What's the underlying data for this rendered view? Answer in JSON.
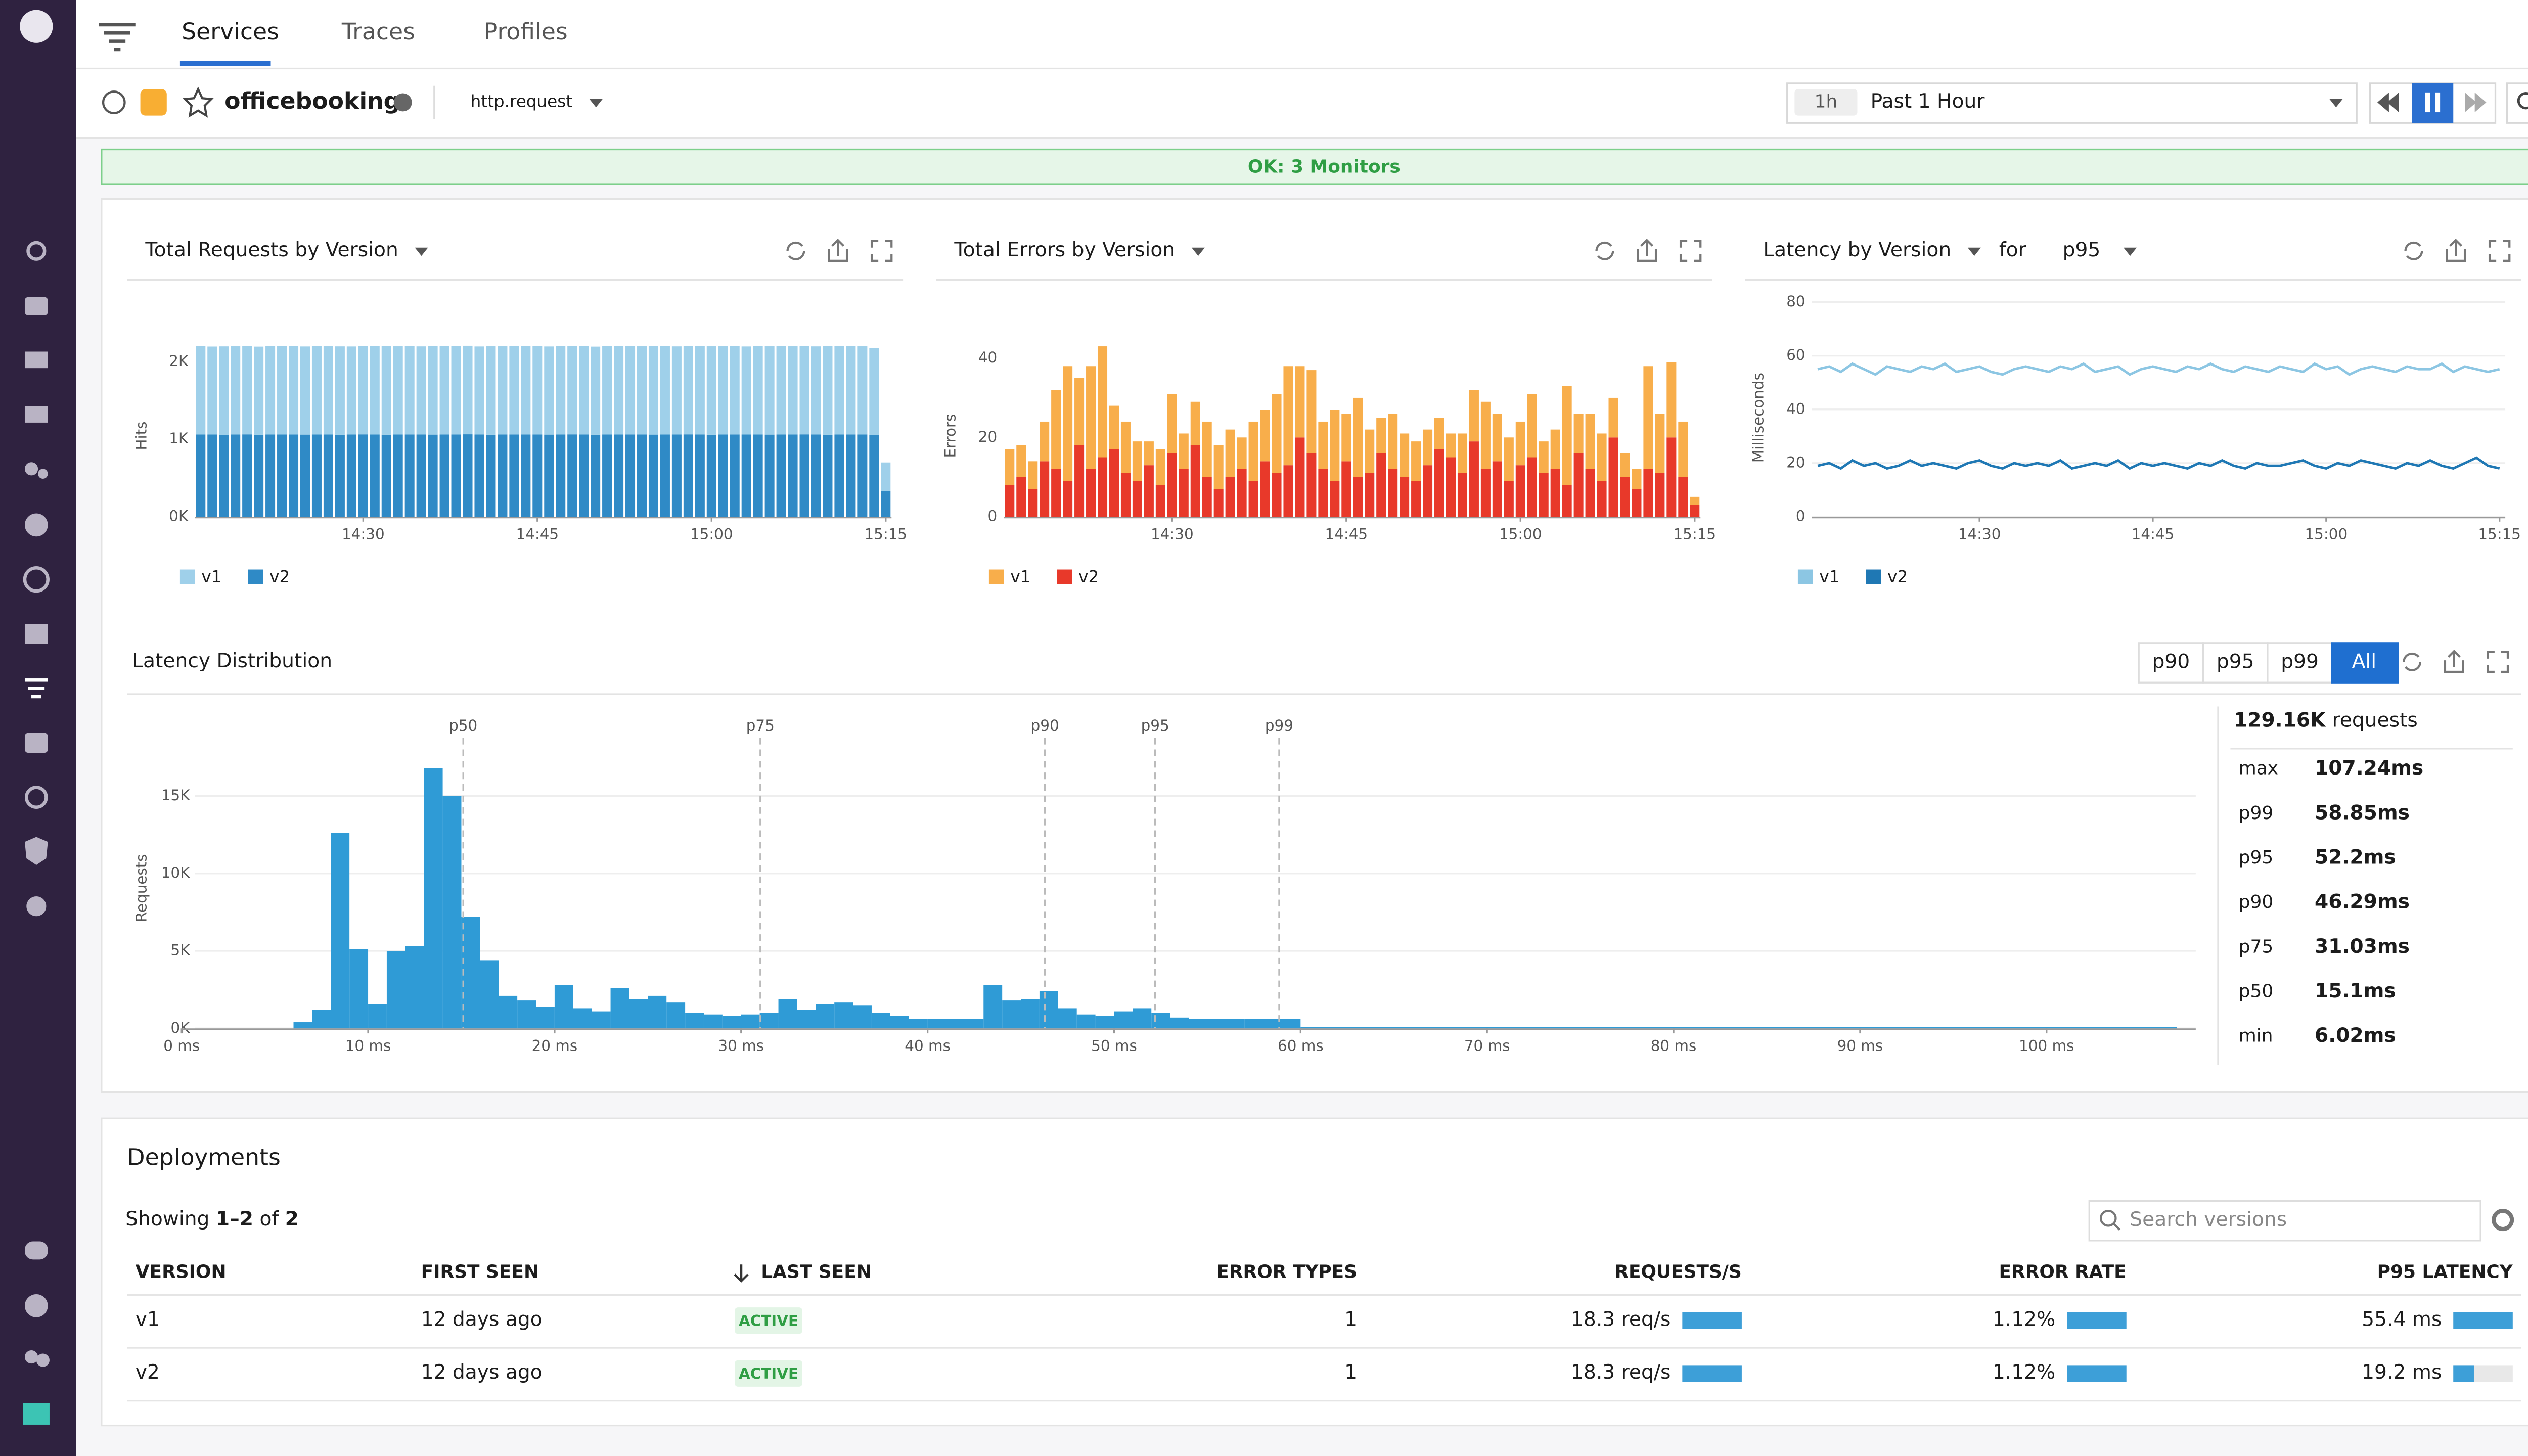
{
  "nav": {
    "tabs": [
      "Services",
      "Traces",
      "Profiles"
    ]
  },
  "header": {
    "service": "officebooking",
    "operation": "http.request",
    "time_chip": "1h",
    "time_range": "Past 1 Hour",
    "monitors": "OK: 3 Monitors"
  },
  "chart_data": [
    {
      "type": "bar",
      "stacked": true,
      "title": "Total Requests by Version",
      "y_label": "Hits",
      "categories": [
        null,
        null,
        null,
        null,
        null,
        null,
        null,
        null,
        null,
        null,
        null,
        null,
        null,
        null,
        "14:30",
        null,
        null,
        null,
        null,
        null,
        null,
        null,
        null,
        null,
        null,
        null,
        null,
        null,
        null,
        "14:45",
        null,
        null,
        null,
        null,
        null,
        null,
        null,
        null,
        null,
        null,
        null,
        null,
        null,
        null,
        "15:00",
        null,
        null,
        null,
        null,
        null,
        null,
        null,
        null,
        null,
        null,
        null,
        null,
        null,
        null,
        "15:15"
      ],
      "series": [
        {
          "name": "v1",
          "color": "#9fd0ea",
          "values": [
            1140,
            1135,
            1142,
            1138,
            1140,
            1136,
            1141,
            1139,
            1140,
            1137,
            1142,
            1138,
            1140,
            1136,
            1141,
            1139,
            1143,
            1138,
            1140,
            1137,
            1141,
            1139,
            1140,
            1142,
            1136,
            1140,
            1138,
            1141,
            1139,
            1140,
            1137,
            1142,
            1138,
            1140,
            1136,
            1141,
            1139,
            1140,
            1138,
            1142,
            1140,
            1137,
            1141,
            1139,
            1140,
            1138,
            1142,
            1136,
            1140,
            1139,
            1141,
            1138,
            1140,
            1137,
            1142,
            1139,
            1140,
            1138,
            1120,
            370
          ]
        },
        {
          "name": "v2",
          "color": "#2f8ac6",
          "values": [
            1060,
            1060,
            1055,
            1060,
            1062,
            1058,
            1060,
            1060,
            1061,
            1059,
            1060,
            1060,
            1057,
            1060,
            1062,
            1060,
            1058,
            1060,
            1061,
            1060,
            1059,
            1060,
            1060,
            1063,
            1060,
            1058,
            1060,
            1061,
            1060,
            1060,
            1059,
            1060,
            1062,
            1060,
            1058,
            1060,
            1060,
            1061,
            1060,
            1059,
            1060,
            1060,
            1062,
            1060,
            1058,
            1060,
            1061,
            1060,
            1060,
            1059,
            1060,
            1060,
            1062,
            1060,
            1058,
            1060,
            1061,
            1060,
            1055,
            330
          ]
        }
      ],
      "ylim": [
        0,
        2300
      ],
      "yticks": [
        {
          "value": 0,
          "label": "0K"
        },
        {
          "value": 1000,
          "label": "1K"
        },
        {
          "value": 2000,
          "label": "2K"
        }
      ]
    },
    {
      "type": "bar",
      "stacked": true,
      "title": "Total Errors by Version",
      "y_label": "Errors",
      "categories": [
        null,
        null,
        null,
        null,
        null,
        null,
        null,
        null,
        null,
        null,
        null,
        null,
        null,
        null,
        "14:30",
        null,
        null,
        null,
        null,
        null,
        null,
        null,
        null,
        null,
        null,
        null,
        null,
        null,
        null,
        "14:45",
        null,
        null,
        null,
        null,
        null,
        null,
        null,
        null,
        null,
        null,
        null,
        null,
        null,
        null,
        "15:00",
        null,
        null,
        null,
        null,
        null,
        null,
        null,
        null,
        null,
        null,
        null,
        null,
        null,
        null,
        "15:15"
      ],
      "series": [
        {
          "name": "v1",
          "color": "#f8ae4b",
          "values": [
            9,
            8,
            7,
            10,
            20,
            29,
            17,
            26,
            28,
            11,
            13,
            10,
            6,
            9,
            15,
            9,
            11,
            14,
            11,
            12,
            8,
            15,
            13,
            20,
            25,
            18,
            21,
            12,
            18,
            12,
            20,
            11,
            9,
            14,
            11,
            10,
            9,
            8,
            6,
            10,
            13,
            17,
            12,
            11,
            11,
            16,
            8,
            10,
            25,
            10,
            14,
            12,
            10,
            6,
            5,
            26,
            15,
            19,
            14,
            2
          ]
        },
        {
          "name": "v2",
          "color": "#e8392a",
          "values": [
            8,
            10,
            7,
            14,
            12,
            9,
            18,
            12,
            15,
            17,
            11,
            9,
            13,
            8,
            16,
            12,
            18,
            10,
            7,
            10,
            12,
            9,
            14,
            11,
            13,
            20,
            16,
            12,
            9,
            14,
            10,
            11,
            16,
            12,
            10,
            9,
            13,
            17,
            15,
            11,
            19,
            12,
            14,
            9,
            13,
            15,
            11,
            12,
            8,
            16,
            12,
            9,
            20,
            10,
            7,
            12,
            11,
            20,
            10,
            3
          ]
        }
      ],
      "ylim": [
        0,
        45
      ],
      "yticks": [
        0,
        20,
        40
      ]
    },
    {
      "type": "line",
      "title": "Latency by Version",
      "filter_label": "for",
      "percentile": "p95",
      "y_label": "Milliseconds",
      "categories": [
        null,
        null,
        null,
        null,
        null,
        null,
        null,
        null,
        null,
        null,
        null,
        null,
        null,
        null,
        "14:30",
        null,
        null,
        null,
        null,
        null,
        null,
        null,
        null,
        null,
        null,
        null,
        null,
        null,
        null,
        "14:45",
        null,
        null,
        null,
        null,
        null,
        null,
        null,
        null,
        null,
        null,
        null,
        null,
        null,
        null,
        "15:00",
        null,
        null,
        null,
        null,
        null,
        null,
        null,
        null,
        null,
        null,
        null,
        null,
        null,
        null,
        "15:15"
      ],
      "series": [
        {
          "name": "v1",
          "color": "#8cc6e3",
          "values": [
            55,
            56,
            54,
            57,
            55,
            53,
            56,
            55,
            54,
            56,
            55,
            57,
            54,
            55,
            56,
            54,
            53,
            55,
            56,
            55,
            54,
            56,
            55,
            57,
            54,
            55,
            56,
            53,
            55,
            56,
            55,
            54,
            56,
            55,
            57,
            55,
            54,
            56,
            55,
            54,
            56,
            55,
            54,
            57,
            55,
            56,
            53,
            55,
            56,
            55,
            54,
            56,
            55,
            55,
            57,
            54,
            56,
            55,
            54,
            55
          ]
        },
        {
          "name": "v2",
          "color": "#1f78b4",
          "values": [
            19,
            20,
            18,
            21,
            19,
            20,
            18,
            19,
            21,
            19,
            20,
            19,
            18,
            20,
            21,
            19,
            18,
            20,
            19,
            20,
            19,
            21,
            18,
            19,
            20,
            19,
            21,
            18,
            20,
            19,
            20,
            19,
            18,
            20,
            19,
            21,
            19,
            18,
            20,
            19,
            19,
            20,
            21,
            19,
            18,
            20,
            19,
            21,
            20,
            19,
            18,
            20,
            19,
            21,
            19,
            18,
            20,
            22,
            19,
            18
          ]
        }
      ],
      "ylim": [
        0,
        80
      ],
      "yticks": [
        0,
        20,
        40,
        60,
        80
      ]
    },
    {
      "type": "histogram",
      "title": "Latency Distribution",
      "y_label": "Requests",
      "color": "#2f9bd6",
      "bins": [
        6,
        7,
        8,
        9,
        10,
        11,
        12,
        13,
        14,
        15,
        16,
        17,
        18,
        19,
        20,
        21,
        22,
        23,
        24,
        25,
        26,
        27,
        28,
        29,
        30,
        31,
        32,
        33,
        34,
        35,
        36,
        37,
        38,
        39,
        40,
        41,
        42,
        43,
        44,
        45,
        46,
        47,
        48,
        49,
        50,
        51,
        52,
        53,
        54,
        55,
        56,
        57,
        58,
        59,
        60,
        107
      ],
      "counts": [
        400,
        1200,
        12600,
        5100,
        1600,
        5000,
        5300,
        16800,
        15000,
        7200,
        4400,
        2100,
        1800,
        1400,
        2800,
        1300,
        1100,
        2600,
        1900,
        2100,
        1700,
        1000,
        900,
        800,
        900,
        1000,
        1900,
        1200,
        1600,
        1700,
        1500,
        1000,
        800,
        600,
        600,
        600,
        600,
        2800,
        1800,
        1900,
        2400,
        1300,
        900,
        800,
        1100,
        1300,
        1000,
        700,
        600,
        600,
        600,
        600,
        600,
        600,
        100
      ],
      "xlim": [
        0,
        108
      ],
      "xticks": [
        {
          "value": 0,
          "label": "0 ms"
        },
        {
          "value": 10,
          "label": "10 ms"
        },
        {
          "value": 20,
          "label": "20 ms"
        },
        {
          "value": 30,
          "label": "30 ms"
        },
        {
          "value": 40,
          "label": "40 ms"
        },
        {
          "value": 50,
          "label": "50 ms"
        },
        {
          "value": 60,
          "label": "60 ms"
        },
        {
          "value": 70,
          "label": "70 ms"
        },
        {
          "value": 80,
          "label": "80 ms"
        },
        {
          "value": 90,
          "label": "90 ms"
        },
        {
          "value": 100,
          "label": "100 ms"
        }
      ],
      "ylim": [
        0,
        18000
      ],
      "yticks": [
        {
          "value": 0,
          "label": "0K"
        },
        {
          "value": 5000,
          "label": "5K"
        },
        {
          "value": 10000,
          "label": "10K"
        },
        {
          "value": 15000,
          "label": "15K"
        }
      ],
      "markers": [
        {
          "label": "p50",
          "value": 15.1
        },
        {
          "label": "p75",
          "value": 31.03
        },
        {
          "label": "p90",
          "value": 46.29
        },
        {
          "label": "p95",
          "value": 52.2
        },
        {
          "label": "p99",
          "value": 58.85
        }
      ],
      "buttons": [
        "p90",
        "p95",
        "p99",
        "All"
      ],
      "total": "129.16K",
      "total_unit": "requests",
      "stats": [
        {
          "name": "max",
          "label": "107.24ms"
        },
        {
          "name": "p99",
          "label": "58.85ms"
        },
        {
          "name": "p95",
          "label": "52.2ms"
        },
        {
          "name": "p90",
          "label": "46.29ms"
        },
        {
          "name": "p75",
          "label": "31.03ms"
        },
        {
          "name": "p50",
          "label": "15.1ms"
        },
        {
          "name": "min",
          "label": "6.02ms"
        }
      ]
    }
  ],
  "deployments": {
    "title": "Deployments",
    "showing_prefix": "Showing",
    "showing_range": "1–2",
    "showing_of": "of",
    "showing_total": "2",
    "search": "Search versions",
    "columns": [
      "VERSION",
      "FIRST SEEN",
      "LAST SEEN",
      "ERROR TYPES",
      "REQUESTS/S",
      "ERROR RATE",
      "P95 LATENCY"
    ],
    "rows": [
      [
        "v1",
        "12 days ago",
        "ACTIVE",
        1,
        {
          "value": 18.3,
          "label": "18.3 req/s"
        },
        {
          "value": 1.12,
          "label": "1.12%"
        },
        {
          "value": 55.4,
          "label": "55.4 ms"
        }
      ],
      [
        "v2",
        "12 days ago",
        "ACTIVE",
        1,
        {
          "value": 18.3,
          "label": "18.3 req/s"
        },
        {
          "value": 1.12,
          "label": "1.12%"
        },
        {
          "value": 19.2,
          "label": "19.2 ms"
        }
      ]
    ]
  }
}
